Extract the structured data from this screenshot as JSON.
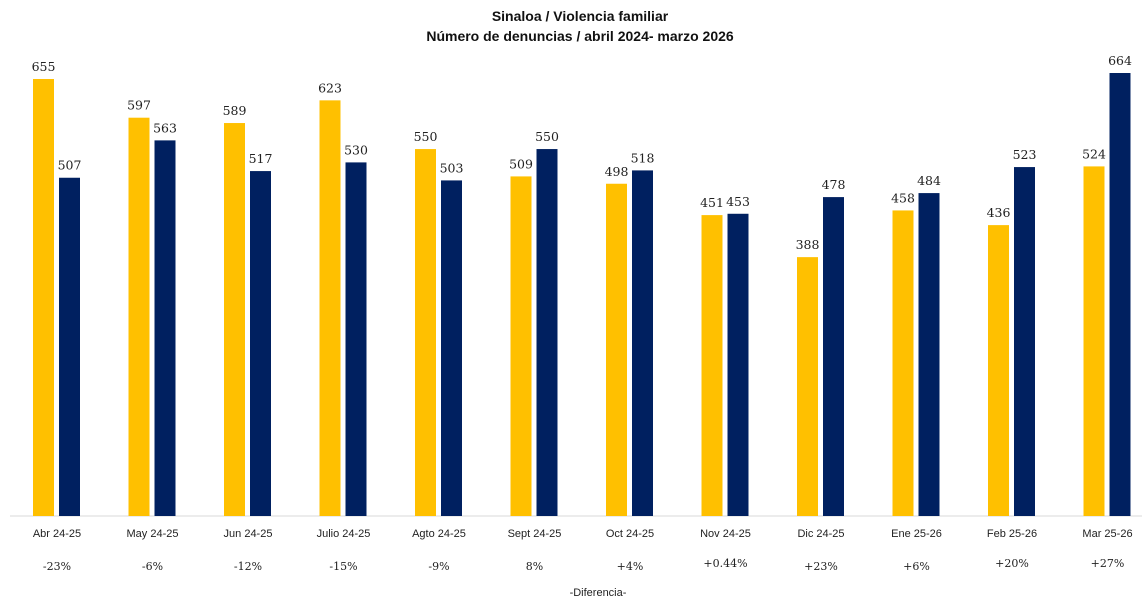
{
  "chart_data": {
    "type": "bar",
    "title": "Sinaloa / Violencia familiar",
    "subtitle": "Número de denuncias / abril 2024- marzo 2026",
    "categories": [
      "Abr 24-25",
      "May 24-25",
      "Jun 24-25",
      "Julio 24-25",
      "Agto 24-25",
      "Sept 24-25",
      "Oct 24-25",
      "Nov 24-25",
      "Dic 24-25",
      "Ene 25-26",
      "Feb 25-26",
      "Mar 25-26"
    ],
    "series": [
      {
        "values": [
          655,
          597,
          589,
          623,
          550,
          509,
          498,
          451,
          388,
          458,
          436,
          524
        ],
        "color": "#FFC000"
      },
      {
        "values": [
          507,
          563,
          517,
          530,
          503,
          550,
          518,
          453,
          478,
          484,
          523,
          664
        ],
        "color": "#002060"
      }
    ],
    "differences": [
      "-23%",
      "-6%",
      "-12%",
      "-15%",
      "-9%",
      "8%",
      "+4%",
      "+0.44%",
      "+23%",
      "+6%",
      "+20%",
      "+27%"
    ],
    "footer": "-Diferencia-",
    "ylim": [
      0,
      664
    ],
    "grid": false,
    "legend": "none",
    "axis_color": "#d9d9d9"
  }
}
